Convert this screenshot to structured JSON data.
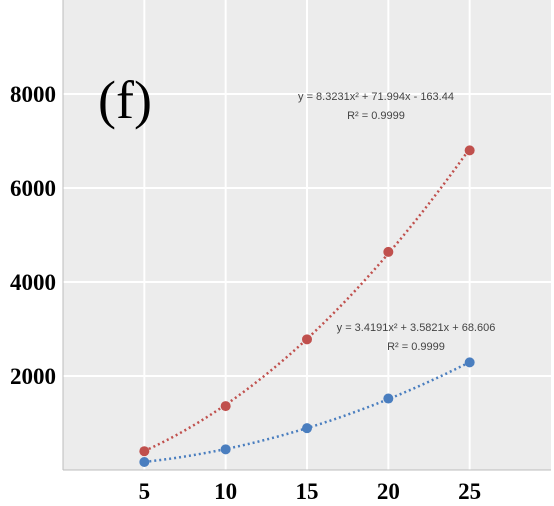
{
  "chart_data": {
    "type": "scatter",
    "panel_label": "(f)",
    "x": [
      5,
      10,
      15,
      20,
      25
    ],
    "xlim": [
      0,
      30
    ],
    "ylim": [
      0,
      10000
    ],
    "x_ticks": [
      5,
      10,
      15,
      20,
      25
    ],
    "y_ticks": [
      2000,
      4000,
      6000,
      8000
    ],
    "grid": true,
    "series": [
      {
        "values": [
          400,
          1360,
          2780,
          4640,
          6800
        ],
        "color": "#c0504d",
        "trendline": "polynomial-2",
        "equation": "y = 8.3231x² + 71.994x - 163.44",
        "r_squared": "R² = 0.9999",
        "coef": [
          8.3231,
          71.994,
          -163.44
        ]
      },
      {
        "values": [
          170,
          440,
          890,
          1520,
          2290
        ],
        "color": "#4a7ebf",
        "trendline": "polynomial-2",
        "equation": "y = 3.4191x² + 3.5821x + 68.606",
        "r_squared": "R² = 0.9999",
        "coef": [
          3.4191,
          3.5821,
          68.606
        ]
      }
    ]
  }
}
